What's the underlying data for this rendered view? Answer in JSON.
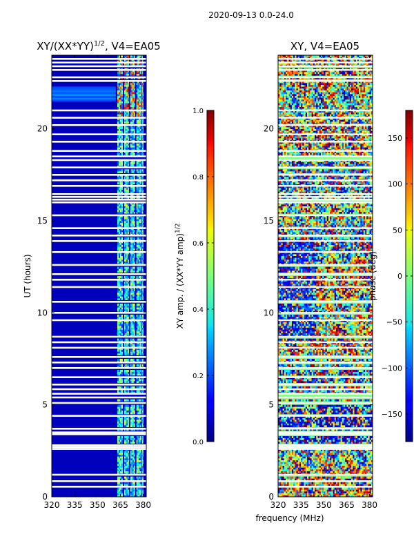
{
  "figure": {
    "suptitle": "2020-09-13 0.0-24.0",
    "common_xlabel": "frequency (MHz)"
  },
  "chart_data": [
    {
      "type": "heatmap",
      "title_base": "XY/(XX*YY)",
      "title_sup": "1/2",
      "title_suffix": ", V4=EA05",
      "xlabel": "frequency (MHz)",
      "ylabel": "UT (hours)",
      "xlim": [
        320,
        382
      ],
      "ylim": [
        0,
        24
      ],
      "xticks": [
        "320",
        "335",
        "350",
        "365",
        "380"
      ],
      "xtick_values": [
        320,
        335,
        350,
        365,
        380
      ],
      "yticks": [
        "0",
        "5",
        "10",
        "15",
        "20"
      ],
      "ytick_values": [
        0,
        5,
        10,
        15,
        20
      ],
      "colormap": "jet",
      "colorbar": {
        "label_base": "XY amp. / (XX*YY amp)",
        "label_sup": "1/2",
        "range": [
          0.0,
          1.0
        ],
        "ticks": [
          "0.0",
          "0.2",
          "0.4",
          "0.6",
          "0.8",
          "1.0"
        ],
        "tick_values": [
          0.0,
          0.2,
          0.4,
          0.6,
          0.8,
          1.0
        ]
      },
      "background_value": 0.0,
      "rfi_bands_mhz": [
        [
          363,
          366.5
        ],
        [
          367.5,
          370.5
        ],
        [
          371.5,
          374.5
        ],
        [
          375.5,
          378.5
        ],
        [
          379,
          380
        ]
      ],
      "rfi_band_typical_value": 0.4,
      "gap_rows_ut": [
        0.55,
        0.85,
        1.2,
        2.6,
        2.7,
        2.8,
        3.4,
        3.5,
        3.7,
        4.4,
        5.1,
        5.4,
        5.6,
        5.85,
        6.1,
        6.5,
        7.0,
        7.3,
        7.6,
        8.1,
        8.4,
        8.7,
        9.6,
        10.0,
        10.6,
        11.4,
        11.8,
        12.1,
        12.6,
        13.3,
        13.9,
        14.2,
        14.6,
        15.3,
        16.0,
        16.15,
        16.3,
        16.45,
        16.9,
        17.2,
        17.5,
        17.9,
        18.3,
        18.5,
        18.8,
        19.3,
        19.7,
        20.2,
        20.6,
        21.0,
        22.6,
        22.8,
        23.2,
        23.4,
        23.6,
        23.8
      ]
    },
    {
      "type": "heatmap",
      "title": "XY, V4=EA05",
      "xlabel": "frequency (MHz)",
      "ylabel": "",
      "xlim": [
        320,
        382
      ],
      "ylim": [
        0,
        24
      ],
      "xticks": [
        "320",
        "335",
        "350",
        "365",
        "380"
      ],
      "xtick_values": [
        320,
        335,
        350,
        365,
        380
      ],
      "yticks": [
        "0",
        "5",
        "10",
        "15",
        "20"
      ],
      "ytick_values": [
        0,
        5,
        10,
        15,
        20
      ],
      "colormap": "jet",
      "colorbar": {
        "label": "phase (deg)",
        "range": [
          -180,
          180
        ],
        "ticks": [
          "−150",
          "−100",
          "−50",
          "0",
          "50",
          "100",
          "150"
        ],
        "tick_values": [
          -150,
          -100,
          -50,
          0,
          50,
          100,
          150
        ]
      },
      "value_range_deg": [
        -180,
        180
      ],
      "gap_rows_ut": [
        0.55,
        0.85,
        1.2,
        2.6,
        2.7,
        2.8,
        3.4,
        3.5,
        3.7,
        4.4,
        5.1,
        5.4,
        5.6,
        5.85,
        6.1,
        6.5,
        7.0,
        7.3,
        7.6,
        8.1,
        8.4,
        8.7,
        9.6,
        10.0,
        10.6,
        11.4,
        11.8,
        12.1,
        12.6,
        13.3,
        13.9,
        14.2,
        14.6,
        15.3,
        16.0,
        16.15,
        16.3,
        16.45,
        16.9,
        17.2,
        17.5,
        17.9,
        18.3,
        18.5,
        18.8,
        19.3,
        19.7,
        20.2,
        20.6,
        21.0,
        22.6,
        22.8,
        23.2,
        23.4,
        23.6,
        23.8
      ]
    }
  ]
}
